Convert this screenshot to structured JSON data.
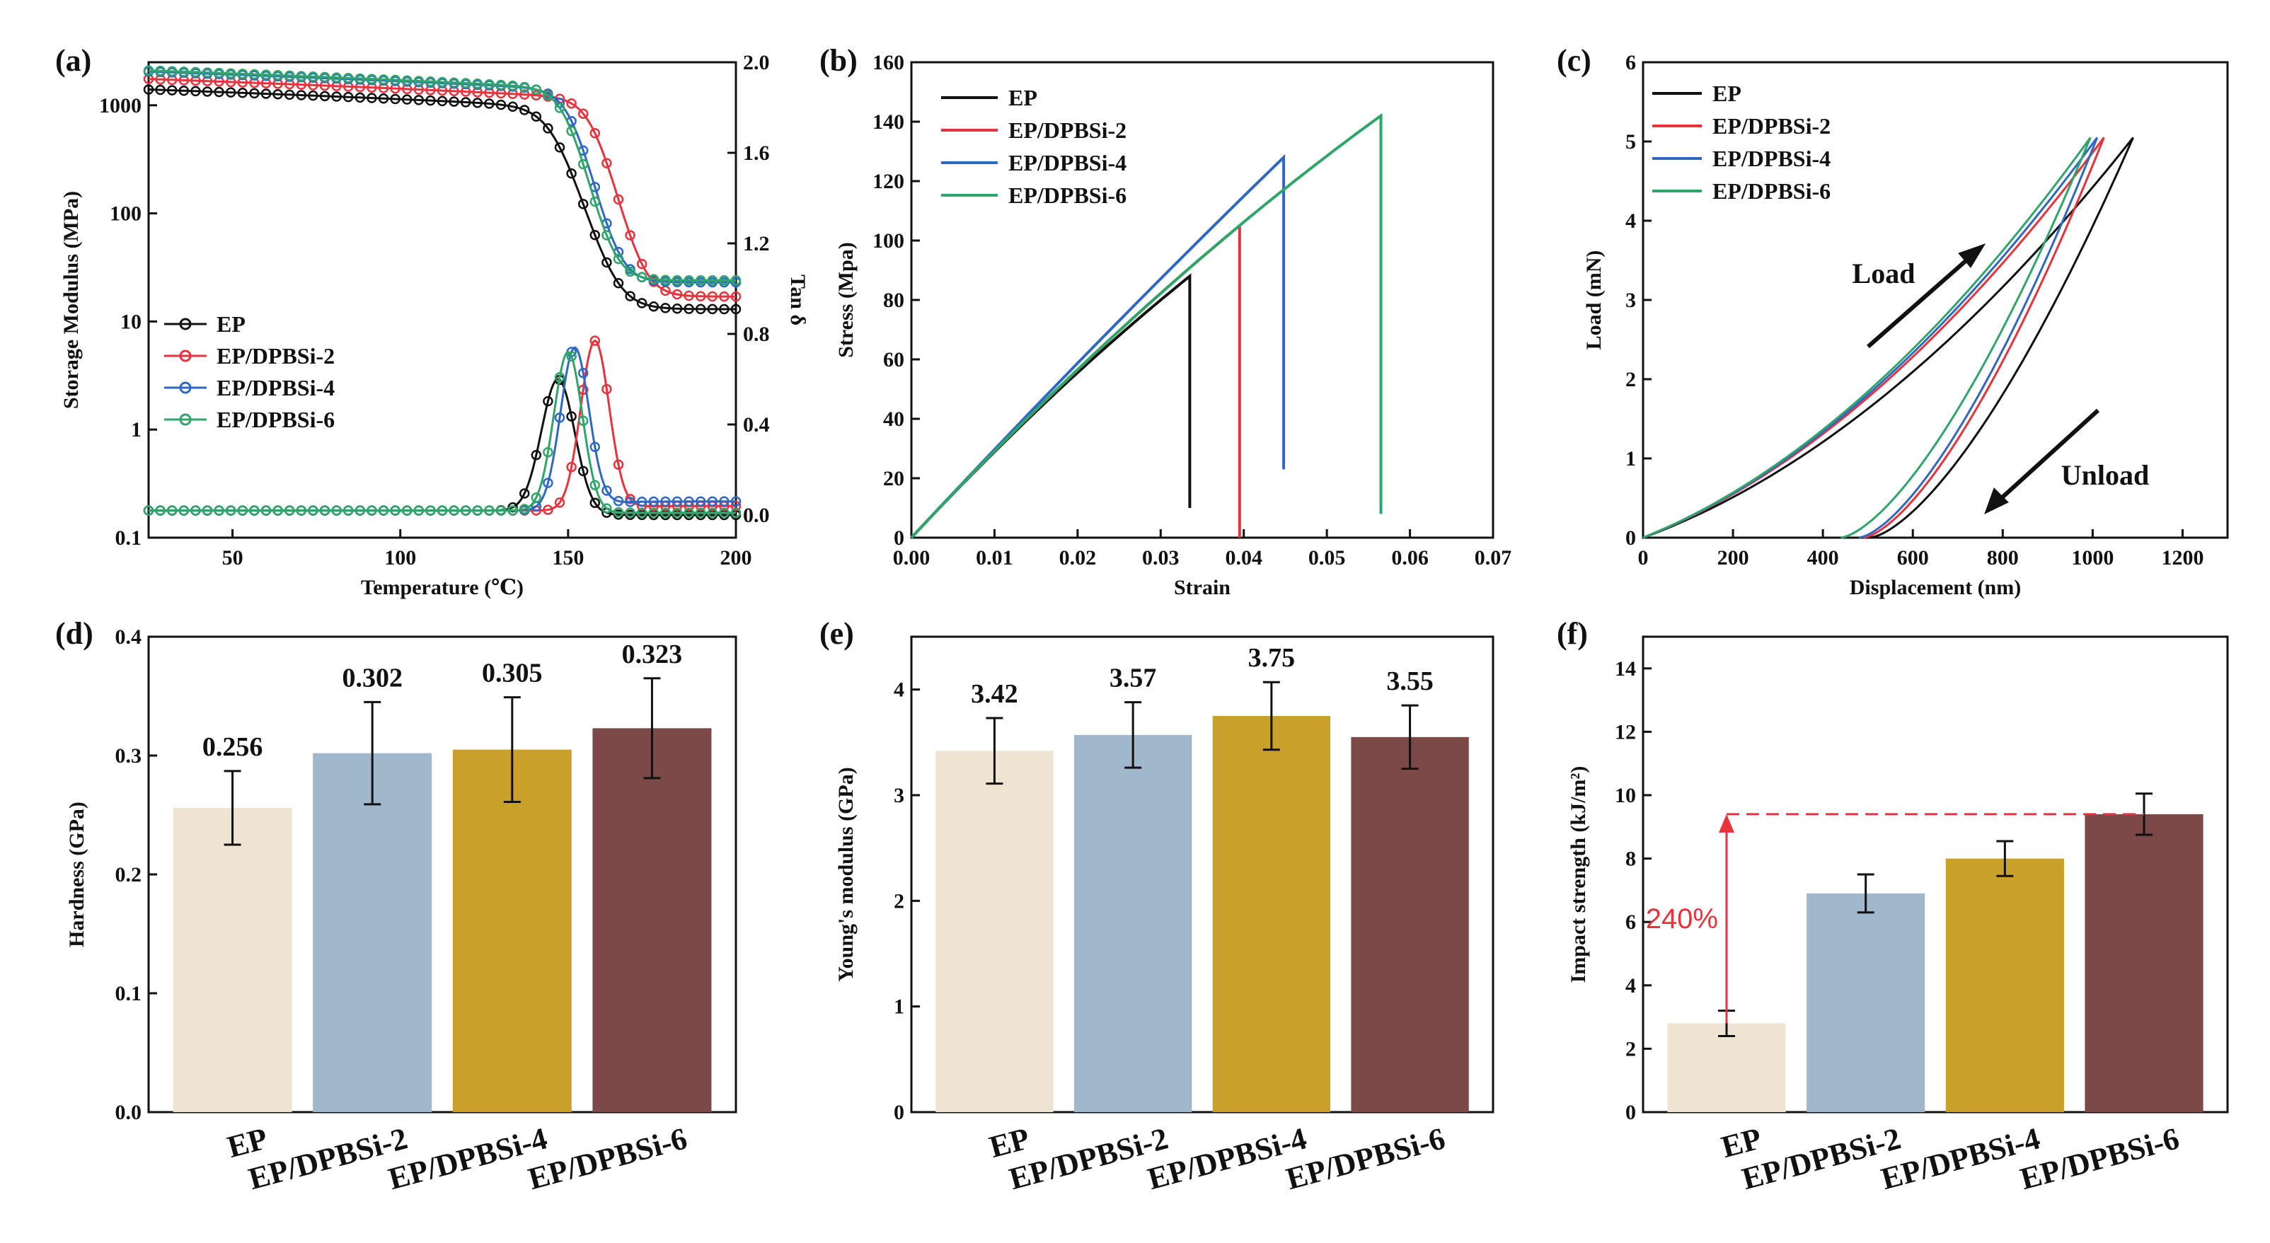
{
  "chart_data": [
    {
      "id": "a",
      "panel_label": "(a)",
      "type": "line",
      "xlabel": "Temperature (℃)",
      "ylabel_left": "Storage Modulus (MPa)",
      "ylabel_right": "Tan δ",
      "x_ticks": [
        "50",
        "100",
        "150",
        "200"
      ],
      "y_left_ticks": [
        "0.1",
        "1",
        "10",
        "100",
        "1000"
      ],
      "y_right_ticks": [
        "0.0",
        "0.4",
        "0.8",
        "1.2",
        "1.6",
        "2.0"
      ],
      "xlim": [
        25,
        200
      ],
      "ylim_left_log": [
        0.1,
        2500
      ],
      "ylim_right": [
        -0.1,
        2.0
      ],
      "series": [
        {
          "name": "EP",
          "color": "#111111",
          "modulus": {
            "e0": 1400,
            "e1": 13,
            "tc": 146,
            "w": 4.2
          },
          "tan": {
            "base": 0.02,
            "peak": 0.6,
            "tp": 147,
            "w": 7,
            "after": 0.0
          }
        },
        {
          "name": "EP/DPBSi-2",
          "color": "#e8323c",
          "modulus": {
            "e0": 1750,
            "e1": 17,
            "tc": 157.5,
            "w": 3.5
          },
          "tan": {
            "base": 0.02,
            "peak": 0.77,
            "tp": 158,
            "w": 6,
            "after": 0.04
          }
        },
        {
          "name": "EP/DPBSi-4",
          "color": "#2f68c4",
          "modulus": {
            "e0": 2050,
            "e1": 23,
            "tc": 151,
            "w": 3.4
          },
          "tan": {
            "base": 0.02,
            "peak": 0.74,
            "tp": 152,
            "w": 6,
            "after": 0.06
          }
        },
        {
          "name": "EP/DPBSi-6",
          "color": "#2fa56a",
          "modulus": {
            "e0": 2100,
            "e1": 24,
            "tc": 149.5,
            "w": 3.4
          },
          "tan": {
            "base": 0.02,
            "peak": 0.72,
            "tp": 150,
            "w": 6,
            "after": 0.01
          }
        }
      ]
    },
    {
      "id": "b",
      "panel_label": "(b)",
      "type": "line",
      "xlabel": "Strain",
      "ylabel": "Stress (Mpa)",
      "x_ticks": [
        "0.00",
        "0.01",
        "0.02",
        "0.03",
        "0.04",
        "0.05",
        "0.06",
        "0.07"
      ],
      "y_ticks": [
        "0",
        "20",
        "40",
        "60",
        "80",
        "100",
        "120",
        "140",
        "160"
      ],
      "xlim": [
        0,
        0.07
      ],
      "ylim": [
        0,
        160
      ],
      "series": [
        {
          "name": "EP",
          "color": "#111111",
          "break_strain": 0.0335,
          "stress": 88,
          "drop_to": 10
        },
        {
          "name": "EP/DPBSi-2",
          "color": "#e8323c",
          "break_strain": 0.0395,
          "stress": 105,
          "drop_to": 0
        },
        {
          "name": "EP/DPBSi-4",
          "color": "#2f68c4",
          "break_strain": 0.0448,
          "stress": 128,
          "drop_to": 23
        },
        {
          "name": "EP/DPBSi-6",
          "color": "#2fa56a",
          "break_strain": 0.0565,
          "stress": 142,
          "drop_to": 8
        }
      ]
    },
    {
      "id": "c",
      "panel_label": "(c)",
      "type": "line",
      "xlabel": "Displacement (nm)",
      "ylabel": "Load (mN)",
      "x_ticks": [
        "0",
        "200",
        "400",
        "600",
        "800",
        "1000",
        "1200"
      ],
      "y_ticks": [
        "0",
        "1",
        "2",
        "3",
        "4",
        "5",
        "6"
      ],
      "xlim": [
        0,
        1300
      ],
      "ylim": [
        0,
        6
      ],
      "annotations": [
        "Load",
        "Unload"
      ],
      "series": [
        {
          "name": "EP",
          "color": "#111111",
          "max_disp": 1090,
          "max_load": 5.05,
          "residual": 505
        },
        {
          "name": "EP/DPBSi-2",
          "color": "#e8323c",
          "max_disp": 1025,
          "max_load": 5.05,
          "residual": 490
        },
        {
          "name": "EP/DPBSi-4",
          "color": "#2f68c4",
          "max_disp": 1010,
          "max_load": 5.05,
          "residual": 480
        },
        {
          "name": "EP/DPBSi-6",
          "color": "#2fa56a",
          "max_disp": 995,
          "max_load": 5.05,
          "residual": 440
        }
      ]
    },
    {
      "id": "d",
      "panel_label": "(d)",
      "type": "bar",
      "ylabel": "Hardness (GPa)",
      "categories": [
        "EP",
        "EP/DPBSi-2",
        "EP/DPBSi-4",
        "EP/DPBSi-6"
      ],
      "values": [
        0.256,
        0.302,
        0.305,
        0.323
      ],
      "value_labels": [
        "0.256",
        "0.302",
        "0.305",
        "0.323"
      ],
      "errors": [
        0.031,
        0.043,
        0.044,
        0.042
      ],
      "y_ticks": [
        "0.0",
        "0.1",
        "0.2",
        "0.3",
        "0.4"
      ],
      "ylim": [
        0,
        0.4
      ]
    },
    {
      "id": "e",
      "panel_label": "(e)",
      "type": "bar",
      "ylabel": "Young's modulus (GPa)",
      "categories": [
        "EP",
        "EP/DPBSi-2",
        "EP/DPBSi-4",
        "EP/DPBSi-6"
      ],
      "values": [
        3.42,
        3.57,
        3.75,
        3.55
      ],
      "value_labels": [
        "3.42",
        "3.57",
        "3.75",
        "3.55"
      ],
      "errors": [
        0.31,
        0.31,
        0.32,
        0.3
      ],
      "y_ticks": [
        "0",
        "1",
        "2",
        "3",
        "4"
      ],
      "ylim": [
        0,
        4.5
      ]
    },
    {
      "id": "f",
      "panel_label": "(f)",
      "type": "bar",
      "ylabel": "Impact strength (kJ/m²)",
      "categories": [
        "EP",
        "EP/DPBSi-2",
        "EP/DPBSi-4",
        "EP/DPBSi-6"
      ],
      "values": [
        2.8,
        6.9,
        8.0,
        9.4
      ],
      "errors": [
        0.4,
        0.6,
        0.55,
        0.65
      ],
      "y_ticks": [
        "0",
        "2",
        "4",
        "6",
        "8",
        "10",
        "12",
        "14"
      ],
      "ylim": [
        0,
        15
      ],
      "annotation": "240%"
    }
  ],
  "bar_colors": [
    "#efe4d2",
    "#a0b7cc",
    "#c9a12a",
    "#7c4848"
  ],
  "line_colors": [
    "#111111",
    "#e8323c",
    "#2f68c4",
    "#2fa56a"
  ]
}
